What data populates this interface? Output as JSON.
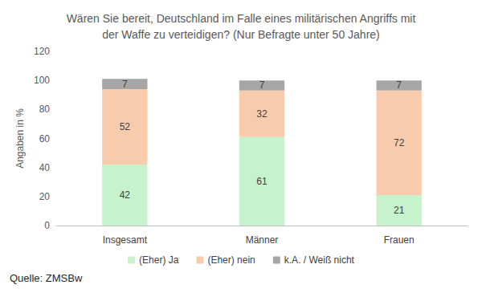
{
  "chart_data": {
    "type": "bar",
    "title": "Wären Sie bereit, Deutschland im Falle eines militärischen Angriffs mit\nder Waffe zu verteidigen? (Nur Befragte unter 50 Jahre)",
    "y_label": "Angaben in %",
    "categories": [
      "Insgesamt",
      "Männer",
      "Frauen"
    ],
    "series": [
      {
        "name": "(Eher) Ja",
        "color": "#c6f2cc",
        "values": [
          42,
          61,
          21
        ]
      },
      {
        "name": "(Eher) nein",
        "color": "#f8cbad",
        "values": [
          52,
          32,
          72
        ]
      },
      {
        "name": "k.A. / Weiß nicht",
        "color": "#a6a6a6",
        "values": [
          7,
          7,
          7
        ]
      }
    ],
    "ylim": [
      0,
      120
    ],
    "yticks": [
      0,
      20,
      40,
      60,
      80,
      100,
      120
    ],
    "stacked": true,
    "data_labels": true,
    "grid": false,
    "legend": "bottom",
    "annotations": [
      "Quelle: ZMSBw"
    ]
  }
}
